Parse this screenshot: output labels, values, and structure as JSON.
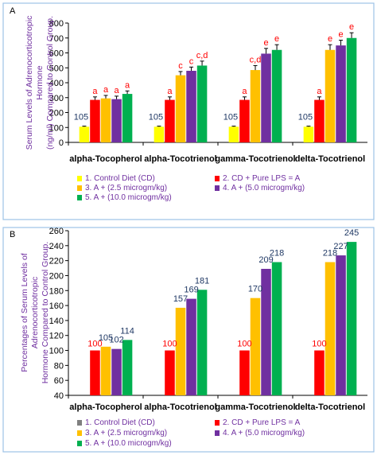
{
  "chart_data": [
    {
      "type": "bar",
      "panel_label": "A",
      "ylabel_lines": [
        "Serum Levels of Adrenocorticotropic",
        "Hormone",
        "(ng/ml) Compared to Control Group."
      ],
      "ylim": [
        0,
        800
      ],
      "yticks": [
        0,
        100,
        200,
        300,
        400,
        500,
        600,
        700,
        800
      ],
      "categories": [
        "alpha-Tocopherol",
        "alpha-Tocotrienol",
        "gamma-Tocotrienol",
        "delta-Tocotrienol"
      ],
      "series": [
        {
          "name": "1. Control Diet (CD)",
          "color": "#ffff00",
          "values": [
            105,
            105,
            105,
            105
          ],
          "errors": [
            4,
            4,
            4,
            4
          ]
        },
        {
          "name": "2. CD + Pure LPS = A",
          "color": "#ff0000",
          "values": [
            285,
            285,
            285,
            285
          ],
          "errors": [
            20,
            20,
            20,
            20
          ]
        },
        {
          "name": "3. A + (2.5 microgm/kg)",
          "color": "#ffc000",
          "values": [
            295,
            450,
            485,
            620
          ],
          "errors": [
            20,
            25,
            30,
            35
          ]
        },
        {
          "name": "4. A + (5.0 microgm/kg)",
          "color": "#7030a0",
          "values": [
            290,
            480,
            595,
            650
          ],
          "errors": [
            20,
            25,
            35,
            35
          ]
        },
        {
          "name": "5. A +  (10.0  microgm/kg)",
          "color": "#00b050",
          "values": [
            325,
            515,
            620,
            700
          ],
          "errors": [
            20,
            30,
            35,
            35
          ]
        }
      ],
      "value_labels": [
        {
          "category": 0,
          "series": 0,
          "text": "105"
        },
        {
          "category": 1,
          "series": 0,
          "text": "105"
        },
        {
          "category": 2,
          "series": 0,
          "text": "105"
        },
        {
          "category": 3,
          "series": 0,
          "text": "105"
        }
      ],
      "sig_letters": [
        [
          "",
          "a",
          "a",
          "a",
          "a"
        ],
        [
          "",
          "a",
          "c",
          "c",
          "c,d"
        ],
        [
          "",
          "a",
          "c,d",
          "e",
          "e"
        ],
        [
          "",
          "a",
          "e",
          "e",
          "e"
        ]
      ],
      "legend_placement": "bottom",
      "grid": false
    },
    {
      "type": "bar",
      "panel_label": "B",
      "ylabel_lines": [
        "Percentages of Serum Levels of",
        "Adrenocorticotropic",
        "Hormone Compared to Control Group."
      ],
      "ylim": [
        40,
        260
      ],
      "yticks": [
        40,
        60,
        80,
        100,
        120,
        140,
        160,
        180,
        200,
        220,
        240,
        260
      ],
      "categories": [
        "alpha-Tocopherol",
        "alpha-Tocotrienol",
        "gamma-Tocotrienol",
        "delta-Tocotrienol"
      ],
      "series": [
        {
          "name": "1. Control Diet (CD)",
          "color": "#7f7f7f",
          "values": [
            40,
            40,
            40,
            40
          ]
        },
        {
          "name": "2. CD + Pure LPS = A",
          "color": "#ff0000",
          "values": [
            100,
            100,
            100,
            100
          ]
        },
        {
          "name": "3. A + (2.5 microgm/kg)",
          "color": "#ffc000",
          "values": [
            105,
            157,
            170,
            218
          ]
        },
        {
          "name": "4. A + (5.0 microgm/kg)",
          "color": "#7030a0",
          "values": [
            102,
            169,
            209,
            227
          ]
        },
        {
          "name": "5. A +  (10.0  microgm/kg)",
          "color": "#00b050",
          "values": [
            114,
            181,
            218,
            245
          ]
        }
      ],
      "value_labels": [
        {
          "category": 0,
          "series": 1,
          "text": "100",
          "color": "#ff0000"
        },
        {
          "category": 0,
          "series": 2,
          "text": "105"
        },
        {
          "category": 0,
          "series": 3,
          "text": "102"
        },
        {
          "category": 0,
          "series": 4,
          "text": "114"
        },
        {
          "category": 1,
          "series": 1,
          "text": "100",
          "color": "#ff0000"
        },
        {
          "category": 1,
          "series": 2,
          "text": "157"
        },
        {
          "category": 1,
          "series": 3,
          "text": "169"
        },
        {
          "category": 1,
          "series": 4,
          "text": "181"
        },
        {
          "category": 2,
          "series": 1,
          "text": "100",
          "color": "#ff0000"
        },
        {
          "category": 2,
          "series": 2,
          "text": "170"
        },
        {
          "category": 2,
          "series": 3,
          "text": "209"
        },
        {
          "category": 2,
          "series": 4,
          "text": "218"
        },
        {
          "category": 3,
          "series": 1,
          "text": "100",
          "color": "#ff0000"
        },
        {
          "category": 3,
          "series": 2,
          "text": "218"
        },
        {
          "category": 3,
          "series": 3,
          "text": "227"
        },
        {
          "category": 3,
          "series": 4,
          "text": "245"
        }
      ],
      "legend_placement": "bottom",
      "grid": false
    }
  ]
}
